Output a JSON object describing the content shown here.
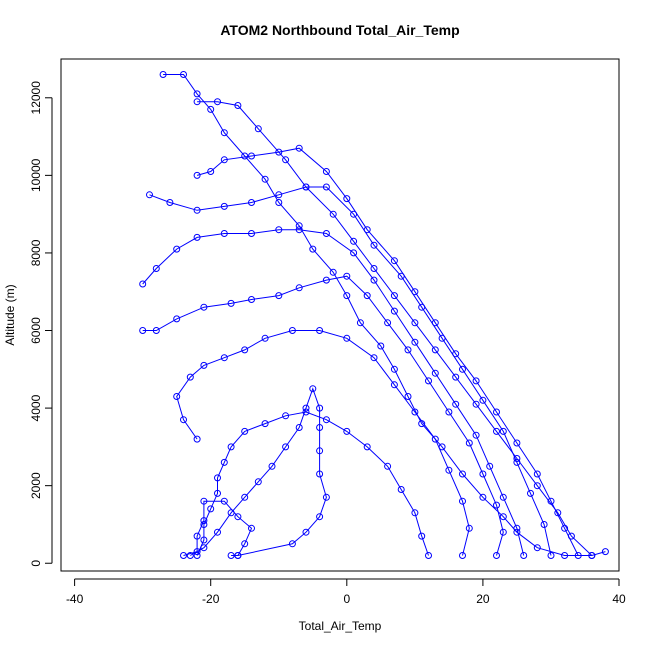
{
  "chart_data": {
    "type": "line",
    "title": "ATOM2 Northbound Total_Air_Temp",
    "xlabel": "Total_Air_Temp",
    "ylabel": "Altitude (m)",
    "xlim": [
      -42,
      40
    ],
    "ylim": [
      -200,
      13000
    ],
    "x_ticks": [
      -40,
      -20,
      0,
      20,
      40
    ],
    "y_ticks": [
      0,
      2000,
      4000,
      6000,
      8000,
      10000,
      12000
    ],
    "color": "#0000ff",
    "marker": "open-circle",
    "grid": false,
    "legend": "none",
    "series": [
      {
        "values": [
          [
            38,
            300
          ],
          [
            36,
            200
          ],
          [
            32,
            200
          ],
          [
            28,
            400
          ],
          [
            25,
            800
          ],
          [
            23,
            1200
          ],
          [
            20,
            1700
          ],
          [
            17,
            2300
          ],
          [
            14,
            3000
          ],
          [
            11,
            3600
          ],
          [
            9,
            4300
          ],
          [
            7,
            5000
          ],
          [
            5,
            5600
          ],
          [
            2,
            6200
          ],
          [
            0,
            6900
          ],
          [
            -2,
            7500
          ],
          [
            -5,
            8100
          ],
          [
            -7,
            8700
          ],
          [
            -10,
            9300
          ],
          [
            -12,
            9900
          ],
          [
            -15,
            10500
          ],
          [
            -18,
            11100
          ],
          [
            -20,
            11700
          ],
          [
            -22,
            12100
          ],
          [
            -24,
            12600
          ],
          [
            -27,
            12600
          ]
        ]
      },
      {
        "values": [
          [
            36,
            200
          ],
          [
            33,
            700
          ],
          [
            31,
            1300
          ],
          [
            28,
            2000
          ],
          [
            25,
            2700
          ],
          [
            22,
            3400
          ],
          [
            19,
            4100
          ],
          [
            16,
            4800
          ],
          [
            13,
            5500
          ],
          [
            10,
            6200
          ],
          [
            7,
            6900
          ],
          [
            4,
            7600
          ],
          [
            1,
            8300
          ],
          [
            -2,
            9000
          ],
          [
            -6,
            9700
          ],
          [
            -9,
            10400
          ],
          [
            -13,
            11200
          ],
          [
            -16,
            11800
          ],
          [
            -19,
            11900
          ],
          [
            -22,
            11900
          ]
        ]
      },
      {
        "values": [
          [
            34,
            200
          ],
          [
            32,
            900
          ],
          [
            30,
            1600
          ],
          [
            28,
            2300
          ],
          [
            25,
            3100
          ],
          [
            22,
            3900
          ],
          [
            19,
            4700
          ],
          [
            16,
            5400
          ],
          [
            13,
            6200
          ],
          [
            10,
            7000
          ],
          [
            7,
            7800
          ],
          [
            3,
            8600
          ],
          [
            0,
            9400
          ],
          [
            -3,
            10100
          ],
          [
            -7,
            10700
          ],
          [
            -10,
            10600
          ],
          [
            -14,
            10500
          ],
          [
            -18,
            10400
          ],
          [
            -20,
            10100
          ],
          [
            -22,
            10000
          ]
        ]
      },
      {
        "values": [
          [
            30,
            200
          ],
          [
            29,
            1000
          ],
          [
            27,
            1800
          ],
          [
            25,
            2600
          ],
          [
            23,
            3400
          ],
          [
            20,
            4200
          ],
          [
            17,
            5000
          ],
          [
            14,
            5800
          ],
          [
            11,
            6600
          ],
          [
            8,
            7400
          ],
          [
            4,
            8200
          ],
          [
            1,
            9000
          ],
          [
            -3,
            9700
          ],
          [
            -6,
            9700
          ],
          [
            -10,
            9500
          ],
          [
            -14,
            9300
          ],
          [
            -18,
            9200
          ],
          [
            -22,
            9100
          ],
          [
            -26,
            9300
          ],
          [
            -29,
            9500
          ]
        ]
      },
      {
        "values": [
          [
            26,
            200
          ],
          [
            25,
            900
          ],
          [
            23,
            1700
          ],
          [
            21,
            2500
          ],
          [
            19,
            3300
          ],
          [
            16,
            4100
          ],
          [
            13,
            4900
          ],
          [
            10,
            5700
          ],
          [
            7,
            6500
          ],
          [
            4,
            7300
          ],
          [
            1,
            8000
          ],
          [
            -3,
            8500
          ],
          [
            -7,
            8600
          ],
          [
            -10,
            8600
          ],
          [
            -14,
            8500
          ],
          [
            -18,
            8500
          ],
          [
            -22,
            8400
          ],
          [
            -25,
            8100
          ],
          [
            -28,
            7600
          ],
          [
            -30,
            7200
          ]
        ]
      },
      {
        "values": [
          [
            22,
            200
          ],
          [
            23,
            800
          ],
          [
            22,
            1500
          ],
          [
            20,
            2300
          ],
          [
            18,
            3100
          ],
          [
            15,
            3900
          ],
          [
            12,
            4700
          ],
          [
            9,
            5500
          ],
          [
            6,
            6200
          ],
          [
            3,
            6900
          ],
          [
            0,
            7400
          ],
          [
            -3,
            7300
          ],
          [
            -7,
            7100
          ],
          [
            -10,
            6900
          ],
          [
            -14,
            6800
          ],
          [
            -17,
            6700
          ],
          [
            -21,
            6600
          ],
          [
            -25,
            6300
          ],
          [
            -28,
            6000
          ],
          [
            -30,
            6000
          ]
        ]
      },
      {
        "values": [
          [
            17,
            200
          ],
          [
            18,
            900
          ],
          [
            17,
            1600
          ],
          [
            15,
            2400
          ],
          [
            13,
            3200
          ],
          [
            10,
            3900
          ],
          [
            7,
            4600
          ],
          [
            4,
            5300
          ],
          [
            0,
            5800
          ],
          [
            -4,
            6000
          ],
          [
            -8,
            6000
          ],
          [
            -12,
            5800
          ],
          [
            -15,
            5500
          ],
          [
            -18,
            5300
          ],
          [
            -21,
            5100
          ],
          [
            -23,
            4800
          ],
          [
            -25,
            4300
          ],
          [
            -24,
            3700
          ],
          [
            -22,
            3200
          ]
        ]
      },
      {
        "values": [
          [
            12,
            200
          ],
          [
            11,
            700
          ],
          [
            10,
            1300
          ],
          [
            8,
            1900
          ],
          [
            6,
            2500
          ],
          [
            3,
            3000
          ],
          [
            0,
            3400
          ],
          [
            -3,
            3700
          ],
          [
            -6,
            3900
          ],
          [
            -9,
            3800
          ],
          [
            -12,
            3600
          ],
          [
            -15,
            3400
          ],
          [
            -17,
            3000
          ],
          [
            -18,
            2600
          ],
          [
            -19,
            2200
          ],
          [
            -19,
            1800
          ],
          [
            -20,
            1400
          ],
          [
            -21,
            1000
          ],
          [
            -21,
            600
          ],
          [
            -22,
            200
          ]
        ]
      },
      {
        "values": [
          [
            -23,
            200
          ],
          [
            -21,
            400
          ],
          [
            -19,
            800
          ],
          [
            -17,
            1300
          ],
          [
            -15,
            1700
          ],
          [
            -13,
            2100
          ],
          [
            -11,
            2500
          ],
          [
            -9,
            3000
          ],
          [
            -7,
            3500
          ],
          [
            -6,
            4000
          ],
          [
            -5,
            4500
          ],
          [
            -4,
            4000
          ],
          [
            -4,
            3500
          ],
          [
            -4,
            2900
          ],
          [
            -4,
            2300
          ],
          [
            -3,
            1700
          ],
          [
            -4,
            1200
          ],
          [
            -6,
            800
          ],
          [
            -8,
            500
          ],
          [
            -16,
            200
          ],
          [
            -17,
            200
          ]
        ]
      },
      {
        "values": [
          [
            -16,
            200
          ],
          [
            -15,
            500
          ],
          [
            -14,
            900
          ],
          [
            -16,
            1200
          ],
          [
            -18,
            1600
          ],
          [
            -21,
            1600
          ],
          [
            -21,
            1100
          ],
          [
            -22,
            700
          ],
          [
            -22,
            300
          ],
          [
            -24,
            200
          ]
        ]
      }
    ]
  }
}
